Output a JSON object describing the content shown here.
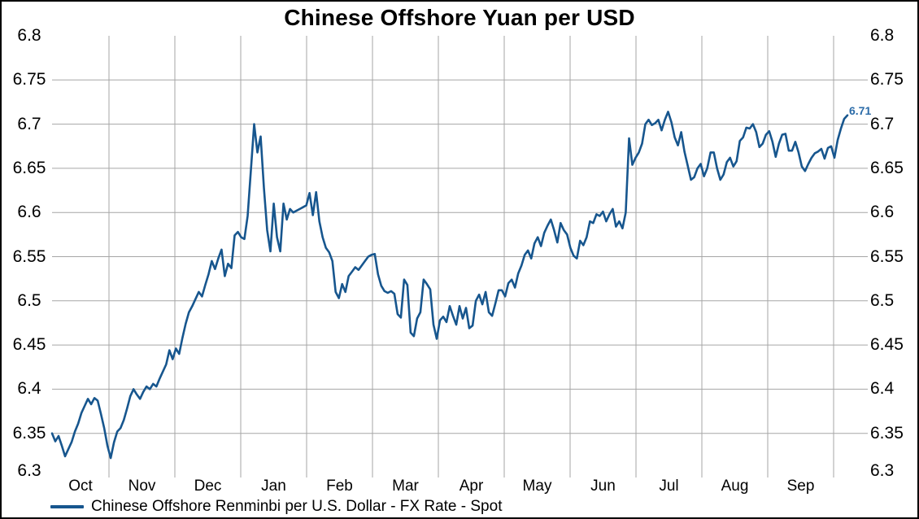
{
  "chart_data": {
    "type": "line",
    "title": "Chinese Offshore Yuan per USD",
    "series": [
      {
        "name": "Chinese Offshore Renminbi per U.S. Dollar - FX Rate - Spot",
        "color": "#17568E",
        "values": [
          6.35,
          6.341,
          6.347,
          6.336,
          6.324,
          6.332,
          6.34,
          6.352,
          6.361,
          6.373,
          6.381,
          6.389,
          6.383,
          6.39,
          6.387,
          6.372,
          6.356,
          6.336,
          6.322,
          6.34,
          6.352,
          6.356,
          6.365,
          6.378,
          6.392,
          6.4,
          6.394,
          6.389,
          6.397,
          6.403,
          6.4,
          6.406,
          6.403,
          6.412,
          6.42,
          6.428,
          6.444,
          6.434,
          6.446,
          6.44,
          6.458,
          6.474,
          6.487,
          6.494,
          6.502,
          6.51,
          6.505,
          6.518,
          6.53,
          6.545,
          6.536,
          6.548,
          6.558,
          6.528,
          6.542,
          6.537,
          6.574,
          6.578,
          6.572,
          6.57,
          6.596,
          6.648,
          6.7,
          6.668,
          6.686,
          6.628,
          6.58,
          6.556,
          6.61,
          6.572,
          6.556,
          6.61,
          6.592,
          6.604,
          6.6,
          6.602,
          6.604,
          6.606,
          6.608,
          6.622,
          6.597,
          6.623,
          6.59,
          6.572,
          6.56,
          6.555,
          6.545,
          6.51,
          6.503,
          6.519,
          6.51,
          6.528,
          6.533,
          6.538,
          6.535,
          6.54,
          6.545,
          6.55,
          6.552,
          6.553,
          6.53,
          6.517,
          6.511,
          6.509,
          6.511,
          6.508,
          6.485,
          6.481,
          6.524,
          6.518,
          6.464,
          6.46,
          6.48,
          6.487,
          6.524,
          6.519,
          6.513,
          6.473,
          6.457,
          6.478,
          6.482,
          6.476,
          6.494,
          6.483,
          6.473,
          6.494,
          6.48,
          6.492,
          6.469,
          6.472,
          6.5,
          6.507,
          6.496,
          6.51,
          6.487,
          6.483,
          6.497,
          6.512,
          6.512,
          6.505,
          6.52,
          6.524,
          6.515,
          6.531,
          6.54,
          6.552,
          6.557,
          6.548,
          6.565,
          6.572,
          6.562,
          6.577,
          6.585,
          6.592,
          6.58,
          6.566,
          6.588,
          6.58,
          6.575,
          6.56,
          6.551,
          6.548,
          6.568,
          6.563,
          6.572,
          6.59,
          6.588,
          6.598,
          6.596,
          6.601,
          6.59,
          6.598,
          6.604,
          6.584,
          6.59,
          6.582,
          6.6,
          6.684,
          6.654,
          6.662,
          6.668,
          6.678,
          6.7,
          6.705,
          6.699,
          6.701,
          6.705,
          6.693,
          6.705,
          6.714,
          6.702,
          6.685,
          6.676,
          6.691,
          6.669,
          6.653,
          6.637,
          6.64,
          6.65,
          6.655,
          6.641,
          6.65,
          6.668,
          6.668,
          6.65,
          6.637,
          6.643,
          6.657,
          6.662,
          6.652,
          6.658,
          6.681,
          6.685,
          6.696,
          6.695,
          6.7,
          6.691,
          6.674,
          6.678,
          6.688,
          6.692,
          6.68,
          6.663,
          6.678,
          6.688,
          6.689,
          6.67,
          6.67,
          6.68,
          6.668,
          6.652,
          6.647,
          6.655,
          6.662,
          6.667,
          6.669,
          6.672,
          6.661,
          6.673,
          6.675,
          6.662,
          6.682,
          6.695,
          6.706,
          6.71
        ]
      }
    ],
    "x_tick_labels": [
      "Oct",
      "Nov",
      "Dec",
      "Jan",
      "Feb",
      "Mar",
      "Apr",
      "May",
      "Jun",
      "Jul",
      "Aug",
      "Sep"
    ],
    "y_ticks": [
      6.8,
      6.75,
      6.7,
      6.65,
      6.6,
      6.55,
      6.5,
      6.45,
      6.4,
      6.35,
      6.3
    ],
    "y_tick_labels": [
      "6.8",
      "6.75",
      "6.7",
      "6.65",
      "6.6",
      "6.55",
      "6.5",
      "6.45",
      "6.4",
      "6.35",
      "6.3"
    ],
    "ylim": [
      6.3,
      6.8
    ],
    "grid": true,
    "gridline_color": "#A6A6A6",
    "legend_position": "bottom-left",
    "last_value_label": "6.71",
    "last_value_color": "#2B6BA8"
  }
}
